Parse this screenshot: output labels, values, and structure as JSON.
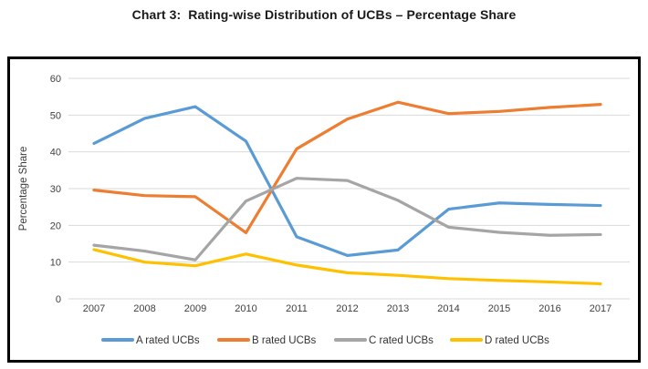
{
  "page": {
    "title": "Chart 3:  Rating-wise Distribution of UCBs – Percentage Share"
  },
  "chart_data": {
    "type": "line",
    "title": "Chart 3: Rating-wise Distribution of UCBs – Percentage Share",
    "xlabel": "",
    "ylabel": "Percentage Share",
    "ylim": [
      0,
      60
    ],
    "yticks": [
      0,
      10,
      20,
      30,
      40,
      50,
      60
    ],
    "grid": "horizontal",
    "gridline_color": "#D9D9D9",
    "axis_text_color": "#404040",
    "legend_position": "bottom",
    "categories": [
      "2007",
      "2008",
      "2009",
      "2010",
      "2011",
      "2012",
      "2013",
      "2014",
      "2015",
      "2016",
      "2017"
    ],
    "series": [
      {
        "name": "A rated UCBs",
        "color": "#5B9BD5",
        "values": [
          42.3,
          49.1,
          52.3,
          42.9,
          16.9,
          11.8,
          13.3,
          24.4,
          26.1,
          25.7,
          25.4
        ]
      },
      {
        "name": "B rated UCBs",
        "color": "#ED7D31",
        "values": [
          29.6,
          28.1,
          27.8,
          18.0,
          40.8,
          48.9,
          53.5,
          50.4,
          51.0,
          52.1,
          52.9
        ]
      },
      {
        "name": "C rated UCBs",
        "color": "#A5A5A5",
        "values": [
          14.6,
          13.0,
          10.6,
          26.6,
          32.8,
          32.2,
          26.8,
          19.5,
          18.1,
          17.3,
          17.5
        ]
      },
      {
        "name": "D rated UCBs",
        "color": "#FFC000",
        "values": [
          13.4,
          10.0,
          9.0,
          12.2,
          9.2,
          7.1,
          6.4,
          5.5,
          5.0,
          4.6,
          4.1
        ]
      }
    ]
  }
}
